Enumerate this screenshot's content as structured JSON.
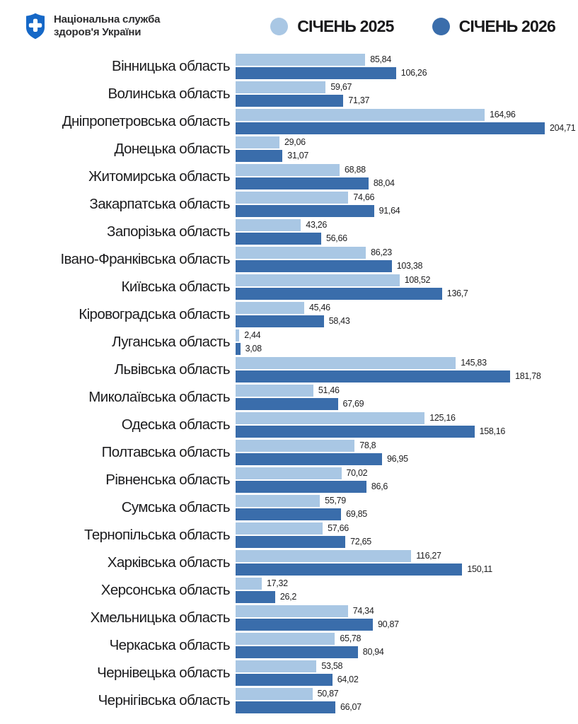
{
  "header": {
    "org_line1": "Національна служба",
    "org_line2": "здоров'я України",
    "logo_color": "#1668C7",
    "legend": [
      {
        "label": "СІЧЕНЬ 2025",
        "color": "#A9C7E4"
      },
      {
        "label": "СІЧЕНЬ 2026",
        "color": "#3A6DAB"
      }
    ]
  },
  "chart_data": {
    "type": "bar",
    "orientation": "horizontal",
    "grid": false,
    "legend_position": "top-right",
    "xlim": [
      0,
      204.71
    ],
    "categories": [
      "Вінницька область",
      "Волинська область",
      "Дніпропетровська область",
      "Донецька область",
      "Житомирська область",
      "Закарпатська область",
      "Запорізька область",
      "Івано-Франківська область",
      "Київська область",
      "Кіровоградська область",
      "Луганська область",
      "Львівська область",
      "Миколаївська область",
      "Одеська область",
      "Полтавська область",
      "Рівненська область",
      "Сумська область",
      "Тернопільська область",
      "Харківська область",
      "Херсонська область",
      "Хмельницька область",
      "Черкаська область",
      "Чернівецька область",
      "Чернігівська область"
    ],
    "series": [
      {
        "name": "СІЧЕНЬ 2025",
        "color": "#A9C7E4",
        "values": [
          85.84,
          59.67,
          164.96,
          29.06,
          68.88,
          74.66,
          43.26,
          86.23,
          108.52,
          45.46,
          2.44,
          145.83,
          51.46,
          125.16,
          78.8,
          70.02,
          55.79,
          57.66,
          116.27,
          17.32,
          74.34,
          65.78,
          53.58,
          50.87
        ],
        "labels": [
          "85,84",
          "59,67",
          "164,96",
          "29,06",
          "68,88",
          "74,66",
          "43,26",
          "86,23",
          "108,52",
          "45,46",
          "2,44",
          "145,83",
          "51,46",
          "125,16",
          "78,8",
          "70,02",
          "55,79",
          "57,66",
          "116,27",
          "17,32",
          "74,34",
          "65,78",
          "53,58",
          "50,87"
        ]
      },
      {
        "name": "СІЧЕНЬ 2026",
        "color": "#3A6DAB",
        "values": [
          106.26,
          71.37,
          204.71,
          31.07,
          88.04,
          91.64,
          56.66,
          103.38,
          136.7,
          58.43,
          3.08,
          181.78,
          67.69,
          158.16,
          96.95,
          86.6,
          69.85,
          72.65,
          150.11,
          26.2,
          90.87,
          80.94,
          64.02,
          66.07
        ],
        "labels": [
          "106,26",
          "71,37",
          "204,71",
          "31,07",
          "88,04",
          "91,64",
          "56,66",
          "103,38",
          "136,7",
          "58,43",
          "3,08",
          "181,78",
          "67,69",
          "158,16",
          "96,95",
          "86,6",
          "69,85",
          "72,65",
          "150,11",
          "26,2",
          "90,87",
          "80,94",
          "64,02",
          "66,07"
        ]
      }
    ]
  }
}
